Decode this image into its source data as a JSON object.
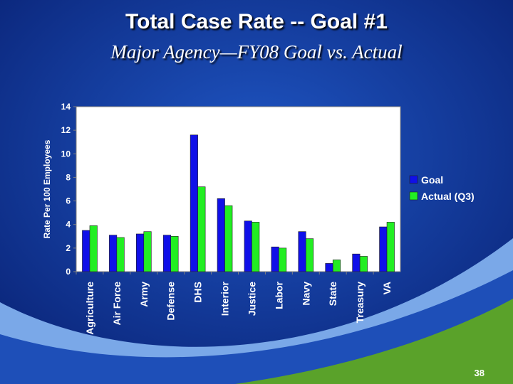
{
  "slide": {
    "title": "Total Case Rate -- Goal #1",
    "subtitle": "Major Agency—FY08 Goal vs. Actual",
    "slide_number": "38"
  },
  "colors": {
    "background": "#0d2f8a",
    "plot_background": "#ffffff",
    "goal": "#1010e8",
    "actual": "#22ee22",
    "swoosh_light": "#7aa8e8",
    "swoosh_green": "#5aa22a"
  },
  "chart_data": {
    "type": "bar",
    "title": "",
    "xlabel": "",
    "ylabel": "Rate Per 100 Employees",
    "ylim": [
      0,
      14
    ],
    "yticks": [
      0,
      2,
      4,
      6,
      8,
      10,
      12,
      14
    ],
    "grid": false,
    "legend_position": "right",
    "categories": [
      "Agriculture",
      "Air Force",
      "Army",
      "Defense",
      "DHS",
      "Interior",
      "Justice",
      "Labor",
      "Navy",
      "State",
      "Treasury",
      "VA"
    ],
    "series": [
      {
        "name": "Goal",
        "values": [
          3.5,
          3.1,
          3.2,
          3.1,
          11.6,
          6.2,
          4.3,
          2.1,
          3.4,
          0.7,
          1.5,
          3.8
        ]
      },
      {
        "name": "Actual (Q3)",
        "values": [
          3.9,
          2.9,
          3.4,
          3.0,
          7.2,
          5.6,
          4.2,
          2.0,
          2.8,
          1.0,
          1.3,
          4.2
        ]
      }
    ]
  }
}
